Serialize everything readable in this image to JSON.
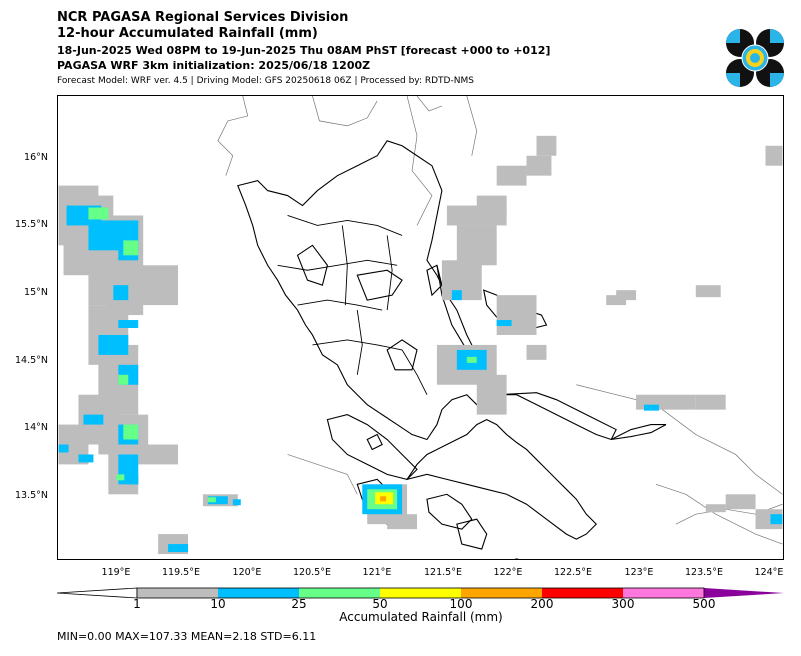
{
  "header": {
    "title1": "NCR PAGASA Regional Services Division",
    "title2": "12-hour Accumulated Rainfall (mm)",
    "period": "18-Jun-2025 Wed 08PM to 19-Jun-2025 Thu 08AM PhST [forecast +000 to +012]",
    "init": "PAGASA WRF 3km initialization: 2025/06/18 1200Z",
    "model": "Forecast Model: WRF ver. 4.5 | Driving Model: GFS 20250618 06Z | Processed by: RDTD-NMS"
  },
  "map": {
    "lat_labels": [
      "16°N",
      "15.5°N",
      "15°N",
      "14.5°N",
      "14°N",
      "13.5°N"
    ],
    "lon_labels": [
      "119°E",
      "119.5°E",
      "120°E",
      "120.5°E",
      "121°E",
      "121.5°E",
      "122°E",
      "122.5°E",
      "123°E",
      "123.5°E",
      "124°E"
    ]
  },
  "colorbar": {
    "label": "Accumulated Rainfall (mm)",
    "ticks": [
      "1",
      "10",
      "25",
      "50",
      "100",
      "200",
      "300",
      "500"
    ],
    "colors": {
      "c1": "#bdbdbd",
      "c2": "#00bfff",
      "c3": "#66ff88",
      "c4": "#ffff00",
      "c5": "#ffa500",
      "c6": "#ff0000",
      "c7": "#ff77dd",
      "c8": "#8a009a"
    }
  },
  "stats": "MIN=0.00   MAX=107.33   MEAN=2.18   STD=6.11"
}
